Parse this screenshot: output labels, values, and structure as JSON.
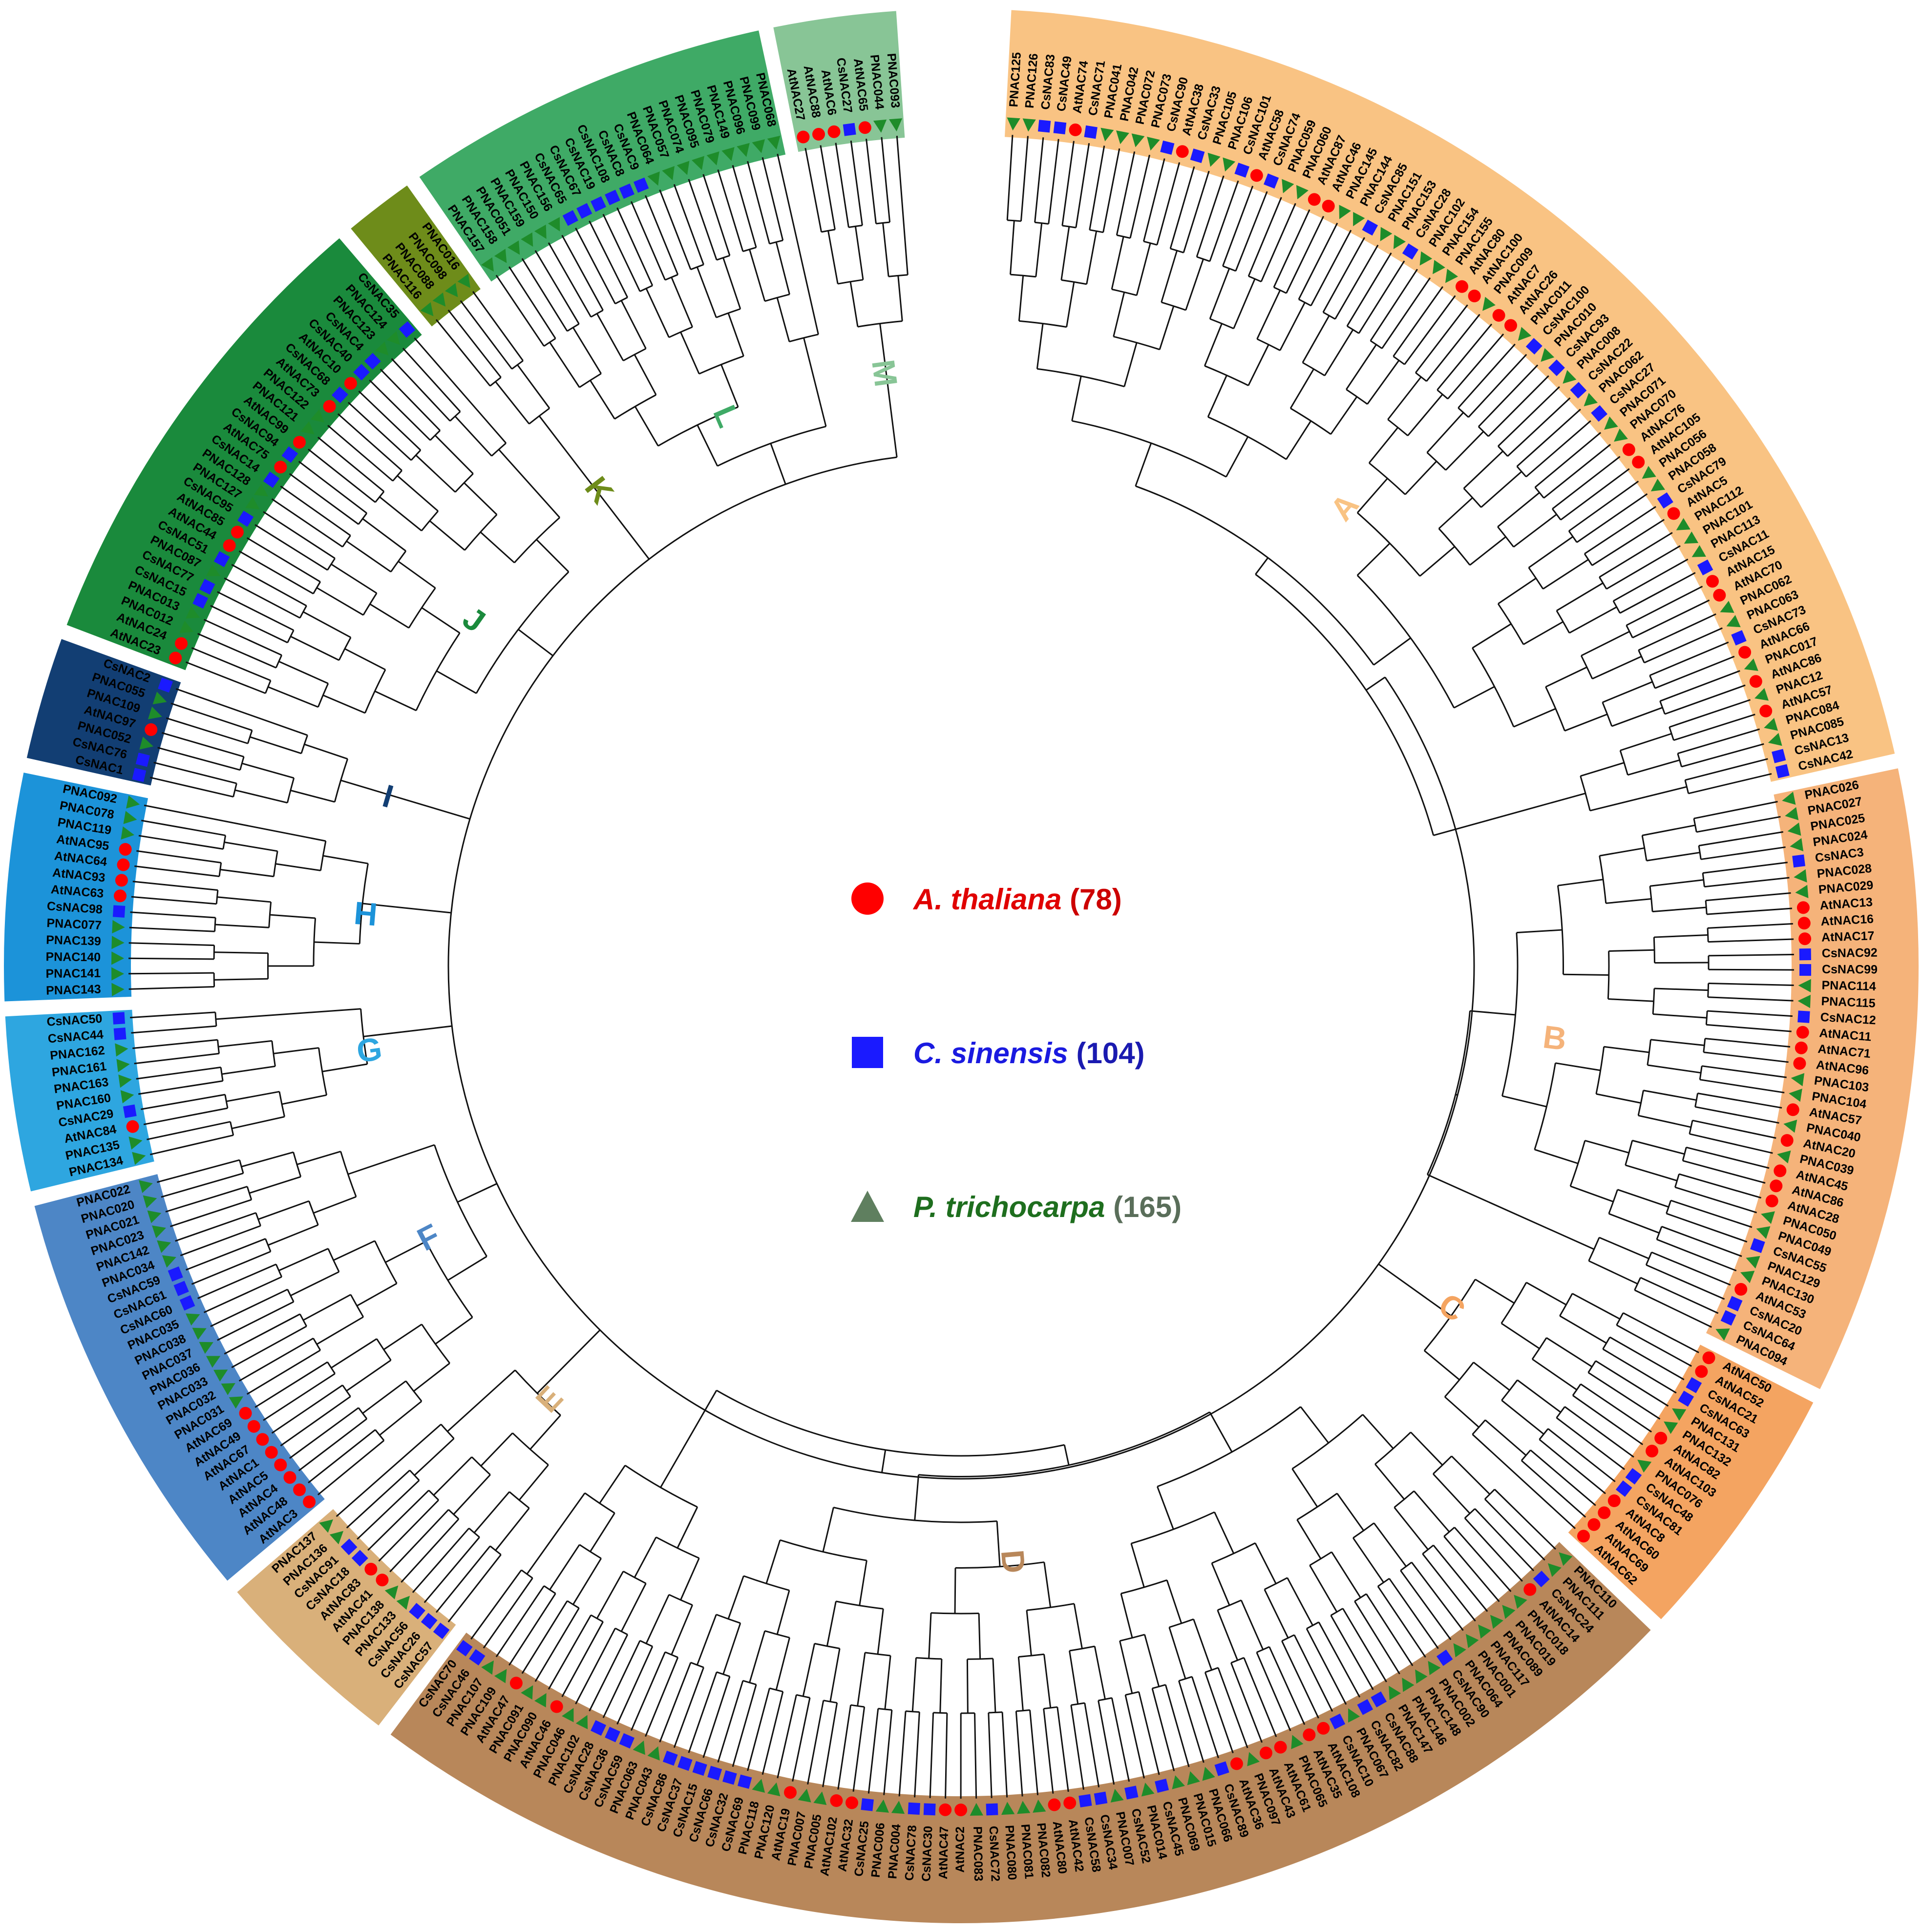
{
  "clades": [
    {
      "id": "A",
      "color": "#F9C383",
      "labels": [
        "PNAC125",
        "PNAC126",
        "CsNAC83",
        "CsNAC49",
        "AtNAC74",
        "CsNAC71",
        "PNAC041",
        "PNAC042",
        "PNAC072",
        "PNAC073",
        "CsNAC90",
        "AtNAC38",
        "CsNAC33",
        "PNAC105",
        "PNAC106",
        "CsNAC101",
        "AtNAC58",
        "CsNAC74",
        "PNAC059",
        "PNAC060",
        "AtNAC87",
        "AtNAC46",
        "PNAC145",
        "PNAC144",
        "CsNAC85",
        "PNAC151",
        "PNAC153",
        "CsNAC28",
        "PNAC102",
        "PNAC154",
        "PNAC155",
        "AtNAC80",
        "AtNAC100",
        "PNAC009",
        "AtNAC7",
        "AtNAC26",
        "PNAC011",
        "CsNAC100",
        "PNAC010",
        "CsNAC93",
        "PNAC008",
        "CsNAC22",
        "PNAC062",
        "CsNAC27",
        "PNAC071",
        "PNAC070",
        "AtNAC76",
        "AtNAC105",
        "PNAC056",
        "PNAC058",
        "CsNAC79",
        "AtNAC5",
        "PNAC112",
        "PNAC101",
        "PNAC113",
        "CsNAC11",
        "AtNAC15",
        "AtNAC70",
        "PNAC062",
        "PNAC063",
        "CsNAC73",
        "AtNAC66",
        "PNAC017",
        "AtNAC86",
        "PNAC12",
        "AtNAC57",
        "PNAC084",
        "PNAC085",
        "CsNAC13",
        "CsNAC42"
      ]
    },
    {
      "id": "B",
      "color": "#F5B37A",
      "labels": [
        "PNAC026",
        "PNAC027",
        "PNAC025",
        "PNAC024",
        "CsNAC3",
        "PNAC028",
        "PNAC029",
        "AtNAC13",
        "AtNAC16",
        "AtNAC17",
        "CsNAC92",
        "CsNAC99",
        "PNAC114",
        "PNAC115",
        "CsNAC12",
        "AtNAC11",
        "AtNAC71",
        "AtNAC96",
        "PNAC103",
        "PNAC104",
        "AtNAC57",
        "PNAC040",
        "AtNAC20",
        "PNAC039",
        "AtNAC45",
        "AtNAC86",
        "AtNAC28",
        "PNAC050",
        "PNAC049",
        "CsNAC55",
        "PNAC129",
        "PNAC130",
        "AtNAC53",
        "CsNAC20",
        "CsNAC64",
        "PNAC094"
      ]
    },
    {
      "id": "C",
      "color": "#F4A461",
      "labels": [
        "AtNAC50",
        "AtNAC52",
        "CsNAC21",
        "CsNAC63",
        "PNAC131",
        "PNAC132",
        "AtNAC82",
        "AtNAC103",
        "PNAC076",
        "CsNAC48",
        "CsNAC81",
        "AtNAC8",
        "AtNAC60",
        "AtNAC69",
        "AtNAC62"
      ]
    },
    {
      "id": "D",
      "color": "#B8875A",
      "labels": [
        "PNAC110",
        "PNAC111",
        "CsNAC24",
        "AtNAC14",
        "PNAC018",
        "PNAC019",
        "PNAC089",
        "PNAC117",
        "PNAC001",
        "PNAC064",
        "CsNAC90",
        "PNAC002",
        "PNAC148",
        "PNAC146",
        "PNAC147",
        "CsNAC88",
        "CsNAC82",
        "PNAC067",
        "CsNAC10",
        "AtNAC108",
        "AtNAC35",
        "PNAC065",
        "AtNAC61",
        "AtNAC43",
        "PNAC097",
        "AtNAC36",
        "CsNAC89",
        "PNAC066",
        "PNAC015",
        "PNAC069",
        "CsNAC45",
        "PNAC014",
        "CsNAC52",
        "PNAC007",
        "CsNAC34",
        "CsNAC58",
        "AtNAC42",
        "AtNAC80",
        "PNAC082",
        "PNAC081",
        "PNAC080",
        "CsNAC72",
        "PNAC083",
        "AtNAC2",
        "AtNAC47",
        "CsNAC30",
        "CsNAC78",
        "PNAC004",
        "PNAC006",
        "CsNAC25",
        "AtNAC32",
        "AtNAC102",
        "PNAC005",
        "PNAC007",
        "AtNAC19",
        "PNAC120",
        "PNAC118",
        "CsNAC69",
        "CsNAC32",
        "CsNAC66",
        "CsNAC15",
        "CsNAC37",
        "CsNAC86",
        "PNAC043",
        "PNAC063",
        "CsNAC59",
        "CsNAC36",
        "CsNAC28",
        "PNAC102",
        "PNAC046",
        "AtNAC46",
        "PNAC090",
        "PNAC091",
        "AtNAC47",
        "PNAC109",
        "PNAC107",
        "CsNAC46",
        "CsNAC70"
      ]
    },
    {
      "id": "E",
      "color": "#D9B07A",
      "labels": [
        "CsNAC57",
        "CsNAC26",
        "CsNAC56",
        "PNAC133",
        "PNAC138",
        "AtNAC41",
        "AtNAC83",
        "CsNAC18",
        "CsNAC91",
        "PNAC136",
        "PNAC137"
      ]
    },
    {
      "id": "F",
      "color": "#4D86C6",
      "labels": [
        "AtNAC3",
        "AtNAC48",
        "AtNAC4",
        "AtNAC5",
        "AtNAC1",
        "AtNAC67",
        "AtNAC49",
        "AtNAC69",
        "PNAC031",
        "PNAC032",
        "PNAC033",
        "PNAC036",
        "PNAC037",
        "PNAC038",
        "PNAC035",
        "CsNAC60",
        "CsNAC61",
        "CsNAC59",
        "PNAC034",
        "PNAC142",
        "PNAC023",
        "PNAC021",
        "PNAC020",
        "PNAC022"
      ]
    },
    {
      "id": "G",
      "color": "#2EA6E0",
      "labels": [
        "PNAC134",
        "PNAC135",
        "AtNAC84",
        "CsNAC29",
        "PNAC160",
        "PNAC163",
        "PNAC161",
        "PNAC162",
        "CsNAC44",
        "CsNAC50"
      ]
    },
    {
      "id": "H",
      "color": "#1C93D9",
      "labels": [
        "PNAC143",
        "PNAC141",
        "PNAC140",
        "PNAC139",
        "PNAC077",
        "CsNAC98",
        "AtNAC63",
        "AtNAC93",
        "AtNAC64",
        "AtNAC95",
        "PNAC119",
        "PNAC078",
        "PNAC092"
      ]
    },
    {
      "id": "I",
      "color": "#123E73",
      "labels": [
        "CsNAC1",
        "CsNAC76",
        "PNAC052",
        "AtNAC97",
        "PNAC109",
        "PNAC055",
        "CsNAC2"
      ]
    },
    {
      "id": "J",
      "color": "#1A8A3C",
      "labels": [
        "AtNAC23",
        "AtNAC24",
        "PNAC012",
        "PNAC013",
        "CsNAC15",
        "CsNAC77",
        "PNAC087",
        "CsNAC51",
        "AtNAC44",
        "AtNAC85",
        "CsNAC95",
        "PNAC127",
        "PNAC128",
        "CsNAC14",
        "AtNAC75",
        "CsNAC94",
        "AtNAC99",
        "PNAC121",
        "PNAC122",
        "AtNAC73",
        "CsNAC68",
        "AtNAC10",
        "CsNAC40",
        "CsNAC4",
        "PNAC123",
        "PNAC124",
        "CsNAC35"
      ]
    },
    {
      "id": "K",
      "color": "#6E8C1A",
      "labels": [
        "PNAC116",
        "PNAC088",
        "PNAC098",
        "PNAC016"
      ]
    },
    {
      "id": "L",
      "color": "#3FAA66",
      "labels": [
        "PNAC157",
        "PNAC158",
        "PNAC051",
        "PNAC159",
        "PNAC150",
        "PNAC156",
        "CsNAC65",
        "CsNAC67",
        "CsNAC19",
        "CsNAC108",
        "CsNAC8",
        "CsNAC9",
        "PNAC064",
        "PNAC057",
        "PNAC074",
        "PNAC095",
        "PNAC079",
        "PNAC149",
        "PNAC096",
        "PNAC099",
        "PNAC068"
      ]
    },
    {
      "id": "M",
      "color": "#88C596",
      "labels": [
        "AtNAC27",
        "AtNAC88",
        "AtNAC6",
        "CsNAC27",
        "AtNAC65",
        "PNAC044",
        "PNAC093"
      ]
    }
  ],
  "legend": [
    {
      "marker": "circle",
      "color": "#FF0000",
      "species": "A. thaliana",
      "count": "(78)",
      "count_color": "#CC0000"
    },
    {
      "marker": "square",
      "color": "#1A1AFF",
      "species": "C. sinensis",
      "count": "(104)",
      "count_color": "#1A1AB0"
    },
    {
      "marker": "triangle",
      "color": "#5F7F5F",
      "species": "P. trichocarpa",
      "count": "(165)",
      "count_color": "#5A6E5A",
      "species_color": "#1E6E1E"
    }
  ]
}
